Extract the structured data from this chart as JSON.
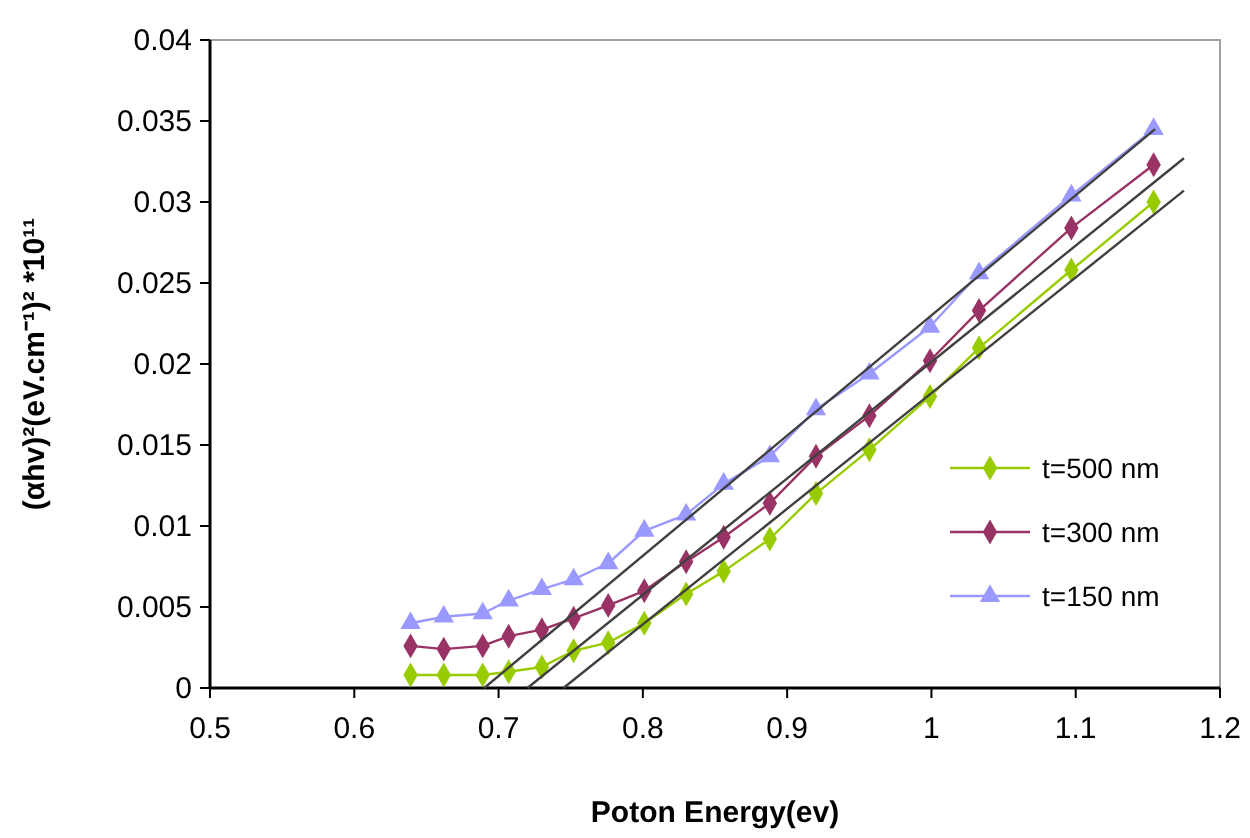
{
  "chart_data": {
    "type": "line",
    "xlabel": "Poton Energy(ev)",
    "ylabel": "(αhv)²(eV.cm⁻¹)² *10¹¹",
    "xlim": [
      0.5,
      1.2
    ],
    "xticks": [
      0.5,
      0.6,
      0.7,
      0.8,
      0.9,
      1,
      1.1,
      1.2
    ],
    "ylim": [
      0,
      0.04
    ],
    "yticks": [
      0,
      0.005,
      0.01,
      0.015,
      0.02,
      0.025,
      0.03,
      0.035,
      0.04
    ],
    "grid": false,
    "legend": "bottom right",
    "x": [
      0.639,
      0.662,
      0.689,
      0.707,
      0.73,
      0.752,
      0.776,
      0.801,
      0.83,
      0.856,
      0.888,
      0.92,
      0.957,
      0.999,
      1.033,
      1.097,
      1.154
    ],
    "series": [
      {
        "name": "t=500 nm",
        "color": "#99cc00",
        "marker": "diamond",
        "values": [
          0.0008,
          0.0008,
          0.0008,
          0.001,
          0.0013,
          0.0023,
          0.0028,
          0.004,
          0.0058,
          0.0072,
          0.0092,
          0.012,
          0.0147,
          0.018,
          0.021,
          0.0258,
          0.03
        ]
      },
      {
        "name": "t=300 nm",
        "color": "#993366",
        "marker": "diamond",
        "values": [
          0.0026,
          0.0024,
          0.0026,
          0.0032,
          0.0036,
          0.0043,
          0.0051,
          0.006,
          0.0078,
          0.0093,
          0.0114,
          0.0143,
          0.0168,
          0.0202,
          0.0233,
          0.0284,
          0.0323
        ]
      },
      {
        "name": "t=150 nm",
        "color": "#9999ff",
        "marker": "triangle",
        "values": [
          0.004,
          0.0044,
          0.0046,
          0.0054,
          0.0061,
          0.0067,
          0.0077,
          0.0097,
          0.0107,
          0.0126,
          0.0143,
          0.0172,
          0.0194,
          0.0223,
          0.0256,
          0.0304,
          0.0345
        ]
      },
      {
        "color": "#404040",
        "marker": "none",
        "x": [
          0.69,
          1.155
        ],
        "values": [
          0,
          0.0345
        ]
      },
      {
        "color": "#404040",
        "marker": "none",
        "x": [
          0.72,
          1.175
        ],
        "values": [
          0,
          0.0327
        ]
      },
      {
        "color": "#404040",
        "marker": "none",
        "x": [
          0.745,
          1.175
        ],
        "values": [
          0,
          0.0307
        ]
      }
    ]
  }
}
